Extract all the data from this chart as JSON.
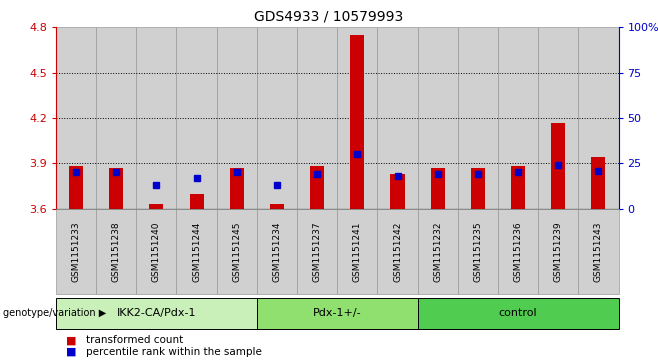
{
  "title": "GDS4933 / 10579993",
  "samples": [
    "GSM1151233",
    "GSM1151238",
    "GSM1151240",
    "GSM1151244",
    "GSM1151245",
    "GSM1151234",
    "GSM1151237",
    "GSM1151241",
    "GSM1151242",
    "GSM1151232",
    "GSM1151235",
    "GSM1151236",
    "GSM1151239",
    "GSM1151243"
  ],
  "red_values": [
    3.88,
    3.87,
    3.63,
    3.7,
    3.87,
    3.63,
    3.88,
    4.75,
    3.83,
    3.87,
    3.87,
    3.88,
    4.17,
    3.94
  ],
  "blue_values": [
    20,
    20,
    13,
    17,
    20,
    13,
    19,
    30,
    18,
    19,
    19,
    20,
    24,
    21
  ],
  "groups": [
    {
      "label": "IKK2-CA/Pdx-1",
      "start": 0,
      "end": 5,
      "color": "#c8f0b8"
    },
    {
      "label": "Pdx-1+/-",
      "start": 5,
      "end": 9,
      "color": "#90e070"
    },
    {
      "label": "control",
      "start": 9,
      "end": 14,
      "color": "#50cc50"
    }
  ],
  "ylim_left": [
    3.6,
    4.8
  ],
  "ylim_right": [
    0,
    100
  ],
  "yticks_left": [
    3.6,
    3.9,
    4.2,
    4.5,
    4.8
  ],
  "yticks_right": [
    0,
    25,
    50,
    75,
    100
  ],
  "yticklabels_right": [
    "0",
    "25",
    "50",
    "75",
    "100%"
  ],
  "left_axis_color": "#cc0000",
  "right_axis_color": "#0000cc",
  "bar_color": "#cc0000",
  "blue_marker_color": "#0000cc",
  "baseline": 3.6,
  "legend_red": "transformed count",
  "legend_blue": "percentile rank within the sample",
  "grid_lines": [
    3.9,
    4.2,
    4.5
  ],
  "col_bg_color": "#d0d0d0",
  "plot_bg_color": "#ffffff"
}
